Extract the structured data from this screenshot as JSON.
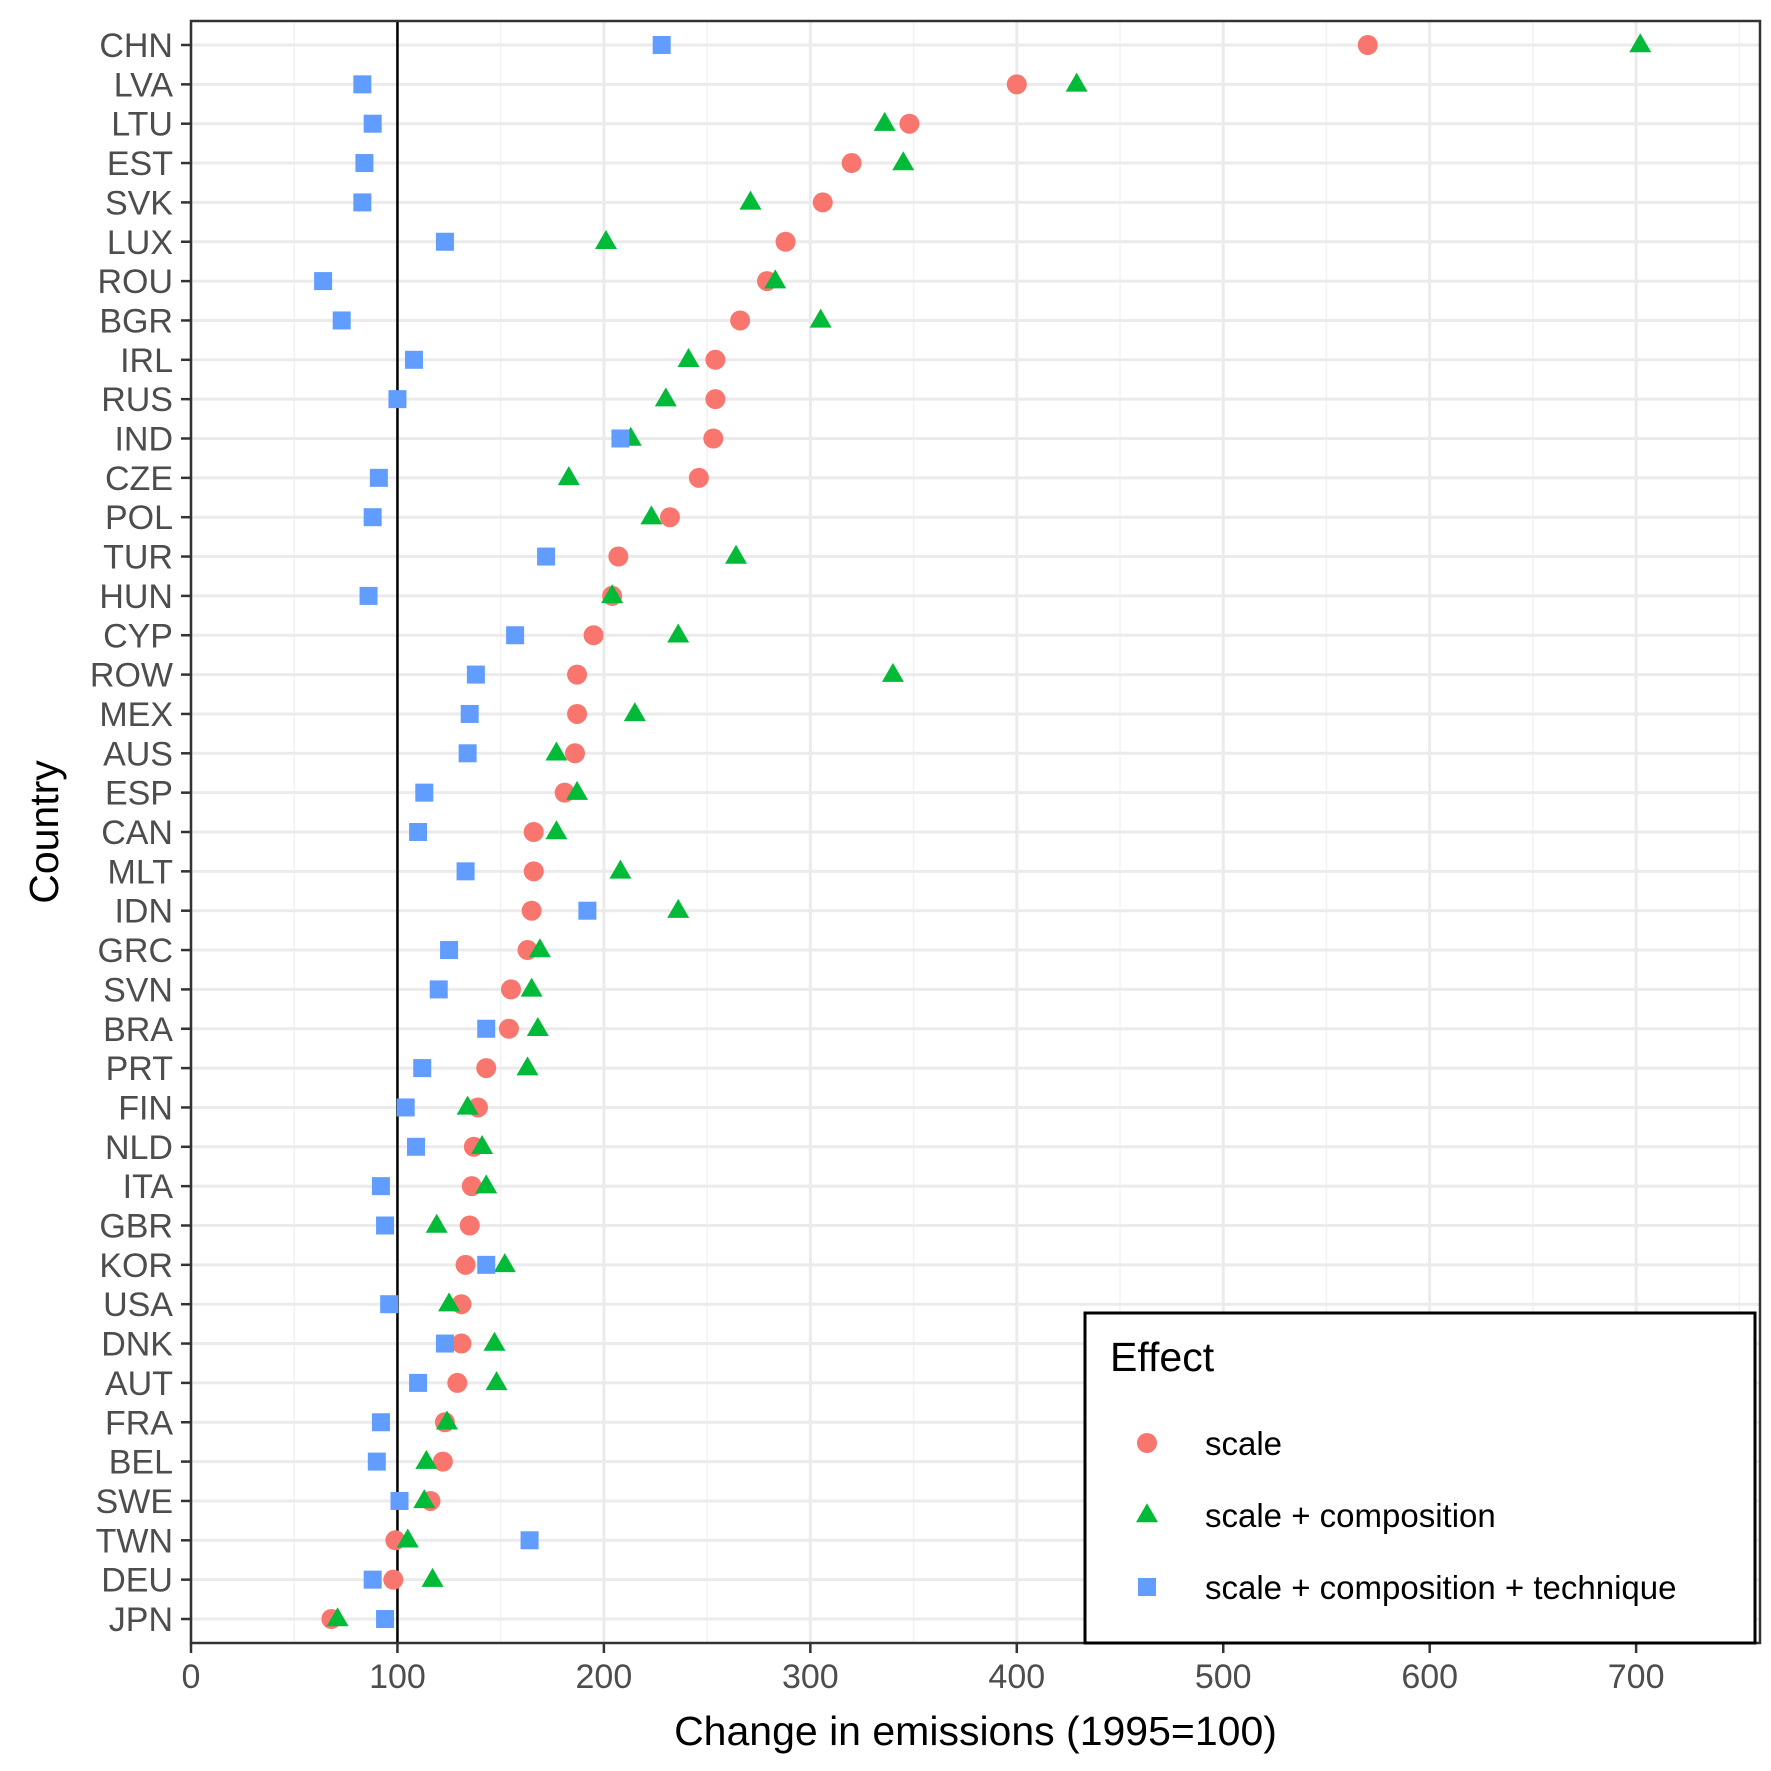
{
  "chart_data": {
    "type": "scatter",
    "xlabel": "Change in emissions (1995=100)",
    "ylabel": "Country",
    "xlim": [
      0,
      760
    ],
    "xticks": [
      0,
      100,
      200,
      300,
      400,
      500,
      600,
      700
    ],
    "reference_line_x": 100,
    "grid": true,
    "legend": {
      "title": "Effect",
      "position": "bottom-right"
    },
    "categories": [
      "CHN",
      "LVA",
      "LTU",
      "EST",
      "SVK",
      "LUX",
      "ROU",
      "BGR",
      "IRL",
      "RUS",
      "IND",
      "CZE",
      "POL",
      "TUR",
      "HUN",
      "CYP",
      "ROW",
      "MEX",
      "AUS",
      "ESP",
      "CAN",
      "MLT",
      "IDN",
      "GRC",
      "SVN",
      "BRA",
      "PRT",
      "FIN",
      "NLD",
      "ITA",
      "GBR",
      "KOR",
      "USA",
      "DNK",
      "AUT",
      "FRA",
      "BEL",
      "SWE",
      "TWN",
      "DEU",
      "JPN"
    ],
    "series": [
      {
        "name": "scale",
        "marker": "circle",
        "color": "#F8766D",
        "values": [
          570,
          400,
          348,
          320,
          306,
          288,
          279,
          266,
          254,
          254,
          253,
          246,
          232,
          207,
          204,
          195,
          187,
          187,
          186,
          181,
          166,
          166,
          165,
          163,
          155,
          154,
          143,
          139,
          137,
          136,
          135,
          133,
          131,
          131,
          129,
          123,
          122,
          116,
          99,
          98,
          68
        ]
      },
      {
        "name": "scale + composition",
        "marker": "triangle",
        "color": "#00BA38",
        "values": [
          702,
          429,
          336,
          345,
          271,
          201,
          283,
          305,
          241,
          230,
          213,
          183,
          223,
          264,
          204,
          236,
          340,
          215,
          177,
          187,
          177,
          208,
          236,
          169,
          165,
          168,
          163,
          134,
          141,
          143,
          119,
          152,
          125,
          147,
          148,
          124,
          114,
          113,
          105,
          117,
          71
        ]
      },
      {
        "name": "scale + composition + technique",
        "marker": "square",
        "color": "#619CFF",
        "values": [
          228,
          83,
          88,
          84,
          83,
          123,
          64,
          73,
          108,
          100,
          208,
          91,
          88,
          172,
          86,
          157,
          138,
          135,
          134,
          113,
          110,
          133,
          192,
          125,
          120,
          143,
          112,
          104,
          109,
          92,
          94,
          143,
          96,
          123,
          110,
          92,
          90,
          101,
          164,
          88,
          94
        ]
      }
    ]
  }
}
